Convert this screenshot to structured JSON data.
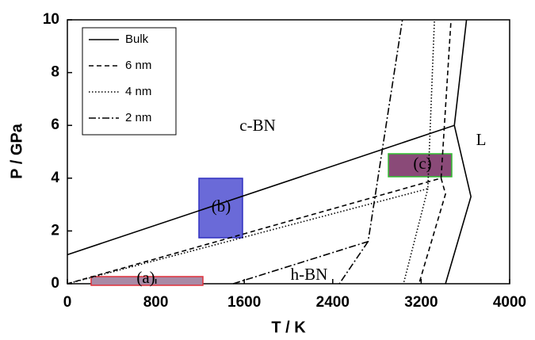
{
  "chart_data": {
    "type": "line",
    "x_label": "T / K",
    "y_label": "P / GPa",
    "xlim": [
      0,
      4000
    ],
    "xticks": [
      0,
      800,
      1600,
      2400,
      3200,
      4000
    ],
    "ylim": [
      0,
      10
    ],
    "yticks": [
      0,
      2,
      4,
      6,
      8,
      10
    ],
    "grid": false,
    "legend": "upper left",
    "annotations": [
      "c-BN",
      "L",
      "h-BN",
      "(a)",
      "(b)",
      "(c)"
    ],
    "series": [
      {
        "name": "Bulk",
        "color": "#000000",
        "dash": "solid",
        "x": [
          0,
          3500,
          3610,
          null,
          3500,
          3650,
          3420
        ],
        "values": [
          1.1,
          6.0,
          10,
          null,
          6.0,
          3.3,
          0
        ]
      },
      {
        "name": "6 nm",
        "color": "#000000",
        "dash": "dashed",
        "x": [
          0,
          3380,
          3470,
          null,
          3380,
          3420,
          3180
        ],
        "values": [
          0,
          4.0,
          10,
          null,
          4.0,
          3.4,
          0
        ]
      },
      {
        "name": "4 nm",
        "color": "#000000",
        "dash": "dotted",
        "x": [
          0,
          3260,
          3320,
          null,
          3260,
          3040
        ],
        "values": [
          0,
          3.6,
          10,
          null,
          3.6,
          0
        ]
      },
      {
        "name": "2 nm",
        "color": "#000000",
        "dash": "dashdot",
        "x": [
          1500,
          2720,
          3030,
          null,
          2720,
          2460
        ],
        "values": [
          0,
          1.6,
          10,
          null,
          1.6,
          0
        ]
      }
    ]
  }
}
